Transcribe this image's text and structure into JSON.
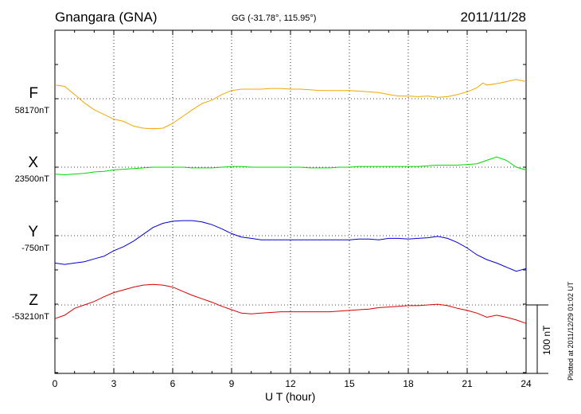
{
  "header": {
    "station": "Gnangara (GNA)",
    "coords": "GG (-31.78°, 115.95°)",
    "date": "2011/11/28"
  },
  "footer": {
    "plotted": "Plotted at 2011/12/29 01:02 UT",
    "scale_label": "100 nT"
  },
  "chart_data": {
    "type": "line",
    "xlabel": "U T (hour)",
    "xlim": [
      0,
      24
    ],
    "xticks": [
      "0",
      "3",
      "6",
      "9",
      "12",
      "15",
      "18",
      "21",
      "24"
    ],
    "scale_bar_nT": 100,
    "grid": true,
    "series": [
      {
        "name": "F",
        "baseline_label": "58170nT",
        "color": "#f0a800",
        "baseline_nT": 58170,
        "points": [
          [
            0,
            58190
          ],
          [
            0.5,
            58188
          ],
          [
            1,
            58176
          ],
          [
            1.5,
            58164
          ],
          [
            2,
            58154
          ],
          [
            2.5,
            58147
          ],
          [
            3,
            58140
          ],
          [
            3.5,
            58137
          ],
          [
            4,
            58130
          ],
          [
            4.5,
            58127
          ],
          [
            5,
            58126
          ],
          [
            5.5,
            58127
          ],
          [
            6,
            58134
          ],
          [
            6.5,
            58144
          ],
          [
            7,
            58154
          ],
          [
            7.5,
            58163
          ],
          [
            8,
            58168
          ],
          [
            8.5,
            58176
          ],
          [
            9,
            58182
          ],
          [
            9.5,
            58184
          ],
          [
            10,
            58184
          ],
          [
            10.5,
            58184
          ],
          [
            11,
            58185
          ],
          [
            11.5,
            58185
          ],
          [
            12,
            58184
          ],
          [
            12.5,
            58184
          ],
          [
            13,
            58183
          ],
          [
            13.5,
            58182
          ],
          [
            14,
            58182
          ],
          [
            14.5,
            58182
          ],
          [
            15,
            58182
          ],
          [
            15.5,
            58181
          ],
          [
            16,
            58180
          ],
          [
            16.5,
            58179
          ],
          [
            17,
            58176
          ],
          [
            17.5,
            58174
          ],
          [
            18,
            58174
          ],
          [
            18.5,
            58173
          ],
          [
            19,
            58174
          ],
          [
            19.5,
            58172
          ],
          [
            20,
            58173
          ],
          [
            20.5,
            58176
          ],
          [
            21,
            58180
          ],
          [
            21.5,
            58186
          ],
          [
            21.8,
            58193
          ],
          [
            22,
            58190
          ],
          [
            22.5,
            58192
          ],
          [
            23,
            58195
          ],
          [
            23.5,
            58198
          ],
          [
            24,
            58195
          ]
        ]
      },
      {
        "name": "X",
        "baseline_label": "23500nT",
        "color": "#00d800",
        "baseline_nT": 23500,
        "points": [
          [
            0,
            23490
          ],
          [
            0.5,
            23489
          ],
          [
            1,
            23490
          ],
          [
            1.5,
            23491
          ],
          [
            2,
            23493
          ],
          [
            2.5,
            23494
          ],
          [
            3,
            23496
          ],
          [
            3.5,
            23497
          ],
          [
            4,
            23498
          ],
          [
            4.5,
            23499
          ],
          [
            5,
            23500
          ],
          [
            5.5,
            23500
          ],
          [
            6,
            23500
          ],
          [
            6.5,
            23500
          ],
          [
            7,
            23499
          ],
          [
            7.5,
            23499
          ],
          [
            8,
            23499
          ],
          [
            8.5,
            23500
          ],
          [
            9,
            23501
          ],
          [
            9.5,
            23501
          ],
          [
            10,
            23500
          ],
          [
            10.5,
            23500
          ],
          [
            11,
            23500
          ],
          [
            11.5,
            23500
          ],
          [
            12,
            23500
          ],
          [
            12.5,
            23500
          ],
          [
            13,
            23499
          ],
          [
            13.5,
            23499
          ],
          [
            14,
            23499
          ],
          [
            14.5,
            23500
          ],
          [
            15,
            23500
          ],
          [
            15.5,
            23501
          ],
          [
            16,
            23501
          ],
          [
            16.5,
            23501
          ],
          [
            17,
            23501
          ],
          [
            17.5,
            23501
          ],
          [
            18,
            23501
          ],
          [
            18.5,
            23501
          ],
          [
            19,
            23502
          ],
          [
            19.5,
            23503
          ],
          [
            20,
            23503
          ],
          [
            20.5,
            23503
          ],
          [
            21,
            23504
          ],
          [
            21.5,
            23505
          ],
          [
            22,
            23510
          ],
          [
            22.5,
            23515
          ],
          [
            23,
            23510
          ],
          [
            23.5,
            23500
          ],
          [
            24,
            23496
          ]
        ]
      },
      {
        "name": "Y",
        "baseline_label": "-750nT",
        "color": "#0000d8",
        "baseline_nT": -750,
        "points": [
          [
            0,
            -790
          ],
          [
            0.5,
            -792
          ],
          [
            1,
            -790
          ],
          [
            1.5,
            -788
          ],
          [
            2,
            -784
          ],
          [
            2.5,
            -780
          ],
          [
            3,
            -772
          ],
          [
            3.5,
            -766
          ],
          [
            4,
            -758
          ],
          [
            4.5,
            -748
          ],
          [
            5,
            -738
          ],
          [
            5.5,
            -732
          ],
          [
            6,
            -729
          ],
          [
            6.5,
            -728
          ],
          [
            7,
            -728
          ],
          [
            7.5,
            -730
          ],
          [
            8,
            -734
          ],
          [
            8.5,
            -740
          ],
          [
            9,
            -747
          ],
          [
            9.5,
            -752
          ],
          [
            10,
            -754
          ],
          [
            10.5,
            -756
          ],
          [
            11,
            -756
          ],
          [
            11.5,
            -756
          ],
          [
            12,
            -756
          ],
          [
            12.5,
            -756
          ],
          [
            13,
            -756
          ],
          [
            13.5,
            -756
          ],
          [
            14,
            -756
          ],
          [
            14.5,
            -756
          ],
          [
            15,
            -756
          ],
          [
            15.5,
            -755
          ],
          [
            16,
            -755
          ],
          [
            16.5,
            -756
          ],
          [
            17,
            -754
          ],
          [
            17.5,
            -754
          ],
          [
            18,
            -755
          ],
          [
            18.5,
            -754
          ],
          [
            19,
            -753
          ],
          [
            19.5,
            -751
          ],
          [
            20,
            -754
          ],
          [
            20.5,
            -760
          ],
          [
            21,
            -768
          ],
          [
            21.5,
            -778
          ],
          [
            22,
            -785
          ],
          [
            22.5,
            -790
          ],
          [
            23,
            -796
          ],
          [
            23.5,
            -802
          ],
          [
            24,
            -798
          ]
        ]
      },
      {
        "name": "Z",
        "baseline_label": "-53210nT",
        "color": "#d80000",
        "baseline_nT": -53210,
        "points": [
          [
            0,
            -53230
          ],
          [
            0.5,
            -53225
          ],
          [
            1,
            -53215
          ],
          [
            1.5,
            -53210
          ],
          [
            2,
            -53205
          ],
          [
            2.5,
            -53198
          ],
          [
            3,
            -53192
          ],
          [
            3.5,
            -53188
          ],
          [
            4,
            -53184
          ],
          [
            4.5,
            -53181
          ],
          [
            5,
            -53180
          ],
          [
            5.5,
            -53181
          ],
          [
            6,
            -53184
          ],
          [
            6.5,
            -53190
          ],
          [
            7,
            -53196
          ],
          [
            7.5,
            -53201
          ],
          [
            8,
            -53206
          ],
          [
            8.5,
            -53212
          ],
          [
            9,
            -53217
          ],
          [
            9.5,
            -53222
          ],
          [
            10,
            -53223
          ],
          [
            10.5,
            -53222
          ],
          [
            11,
            -53221
          ],
          [
            11.5,
            -53220
          ],
          [
            12,
            -53220
          ],
          [
            12.5,
            -53220
          ],
          [
            13,
            -53220
          ],
          [
            13.5,
            -53220
          ],
          [
            14,
            -53220
          ],
          [
            14.5,
            -53219
          ],
          [
            15,
            -53218
          ],
          [
            15.5,
            -53217
          ],
          [
            16,
            -53216
          ],
          [
            16.5,
            -53214
          ],
          [
            17,
            -53213
          ],
          [
            17.5,
            -53212
          ],
          [
            18,
            -53211
          ],
          [
            18.5,
            -53211
          ],
          [
            19,
            -53210
          ],
          [
            19.5,
            -53209
          ],
          [
            20,
            -53211
          ],
          [
            20.5,
            -53215
          ],
          [
            21,
            -53218
          ],
          [
            21.5,
            -53222
          ],
          [
            22,
            -53228
          ],
          [
            22.5,
            -53225
          ],
          [
            23,
            -53228
          ],
          [
            23.5,
            -53232
          ],
          [
            24,
            -53237
          ]
        ]
      }
    ]
  }
}
